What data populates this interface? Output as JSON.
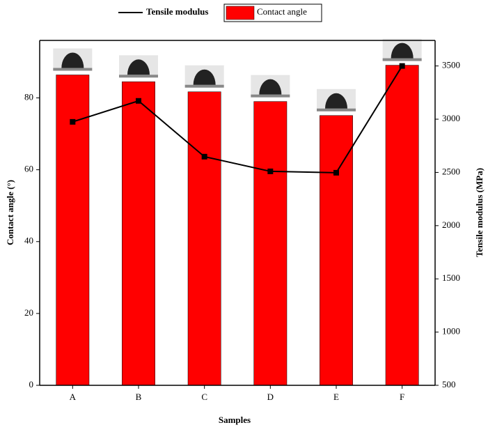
{
  "chart_data": {
    "type": "bar",
    "x_label": "Samples",
    "y_label": "Contact angle (°)",
    "y2_label": "Tensile modulus (MPa)",
    "categories": [
      "A",
      "B",
      "C",
      "D",
      "E",
      "F"
    ],
    "series": [
      {
        "name": "Contact angle",
        "type": "bar",
        "color": "#ff0000",
        "values": [
          86.4,
          84.5,
          81.7,
          79.0,
          75.1,
          89.1
        ]
      },
      {
        "name": "Tensile modulus",
        "type": "line",
        "axis": "y2",
        "color": "#000000",
        "values": [
          2975,
          3172,
          2648,
          2510,
          2497,
          3500
        ]
      }
    ],
    "ylim": [
      0,
      96
    ],
    "yticks": [
      0,
      20,
      40,
      60,
      80
    ],
    "y2lim": [
      500,
      3740
    ],
    "y2ticks": [
      500,
      1000,
      1500,
      2000,
      2500,
      3000,
      3500
    ],
    "legend": "top"
  }
}
